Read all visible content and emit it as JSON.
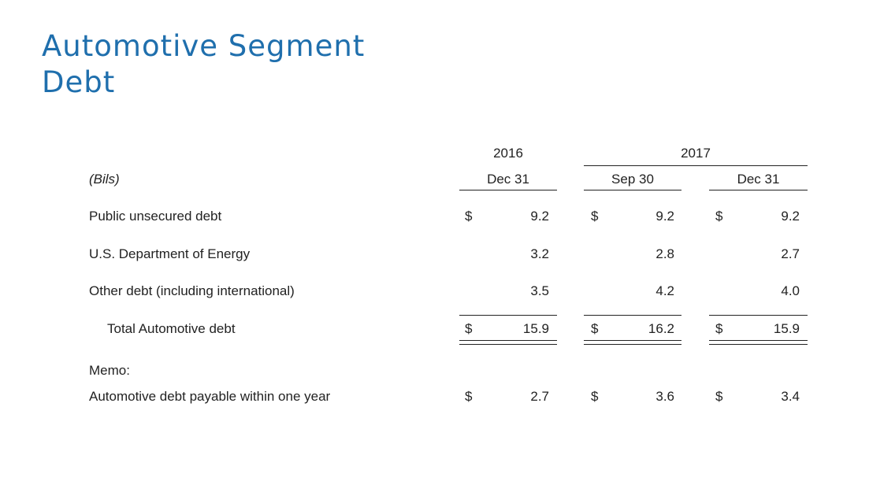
{
  "title": {
    "line1": "Automotive Segment",
    "line2": "Debt"
  },
  "table": {
    "years": {
      "y2016": "2016",
      "y2017": "2017"
    },
    "unit_label": "(Bils)",
    "columns": [
      "Dec 31",
      "Sep 30",
      "Dec 31"
    ],
    "currency": "$",
    "rows": [
      {
        "label": "Public unsecured debt",
        "values": [
          "9.2",
          "9.2",
          "9.2"
        ]
      },
      {
        "label": "U.S. Department of Energy",
        "values": [
          "3.2",
          "2.8",
          "2.7"
        ]
      },
      {
        "label": "Other debt (including international)",
        "values": [
          "3.5",
          "4.2",
          "4.0"
        ]
      },
      {
        "label": "Total Automotive debt",
        "values": [
          "15.9",
          "16.2",
          "15.9"
        ]
      }
    ],
    "memo_label": "Memo:",
    "memo_row": {
      "label": "Automotive debt payable within one year",
      "values": [
        "2.7",
        "3.6",
        "3.4"
      ]
    }
  }
}
